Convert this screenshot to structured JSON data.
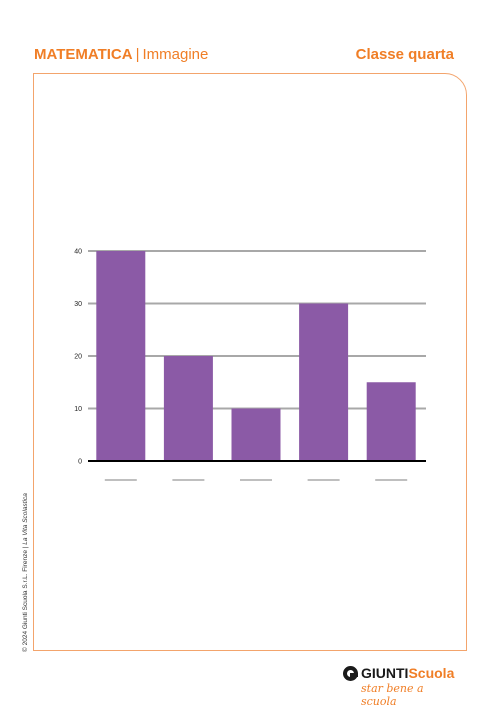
{
  "header": {
    "subject": "MATEMATICA",
    "separator": "|",
    "section": "Immagine",
    "class_label": "Classe quarta"
  },
  "copyright": {
    "prefix": "© 2024 Giunti Scuola S.r.L. Firenze | ",
    "publication": "La Vita Scolastica"
  },
  "logo": {
    "brand_a": "GIUNTI",
    "brand_b": "Scuola",
    "tagline": "star bene a scuola"
  },
  "chart_data": {
    "type": "bar",
    "categories": [
      "",
      "",
      "",
      "",
      ""
    ],
    "values": [
      40,
      20,
      10,
      30,
      15
    ],
    "yticks": [
      0,
      10,
      20,
      30,
      40
    ],
    "ylim": [
      0,
      40
    ],
    "grid": true,
    "bar_color": "#8b5aa6",
    "grid_color": "#a8a8a8",
    "axis_color": "#000000"
  }
}
